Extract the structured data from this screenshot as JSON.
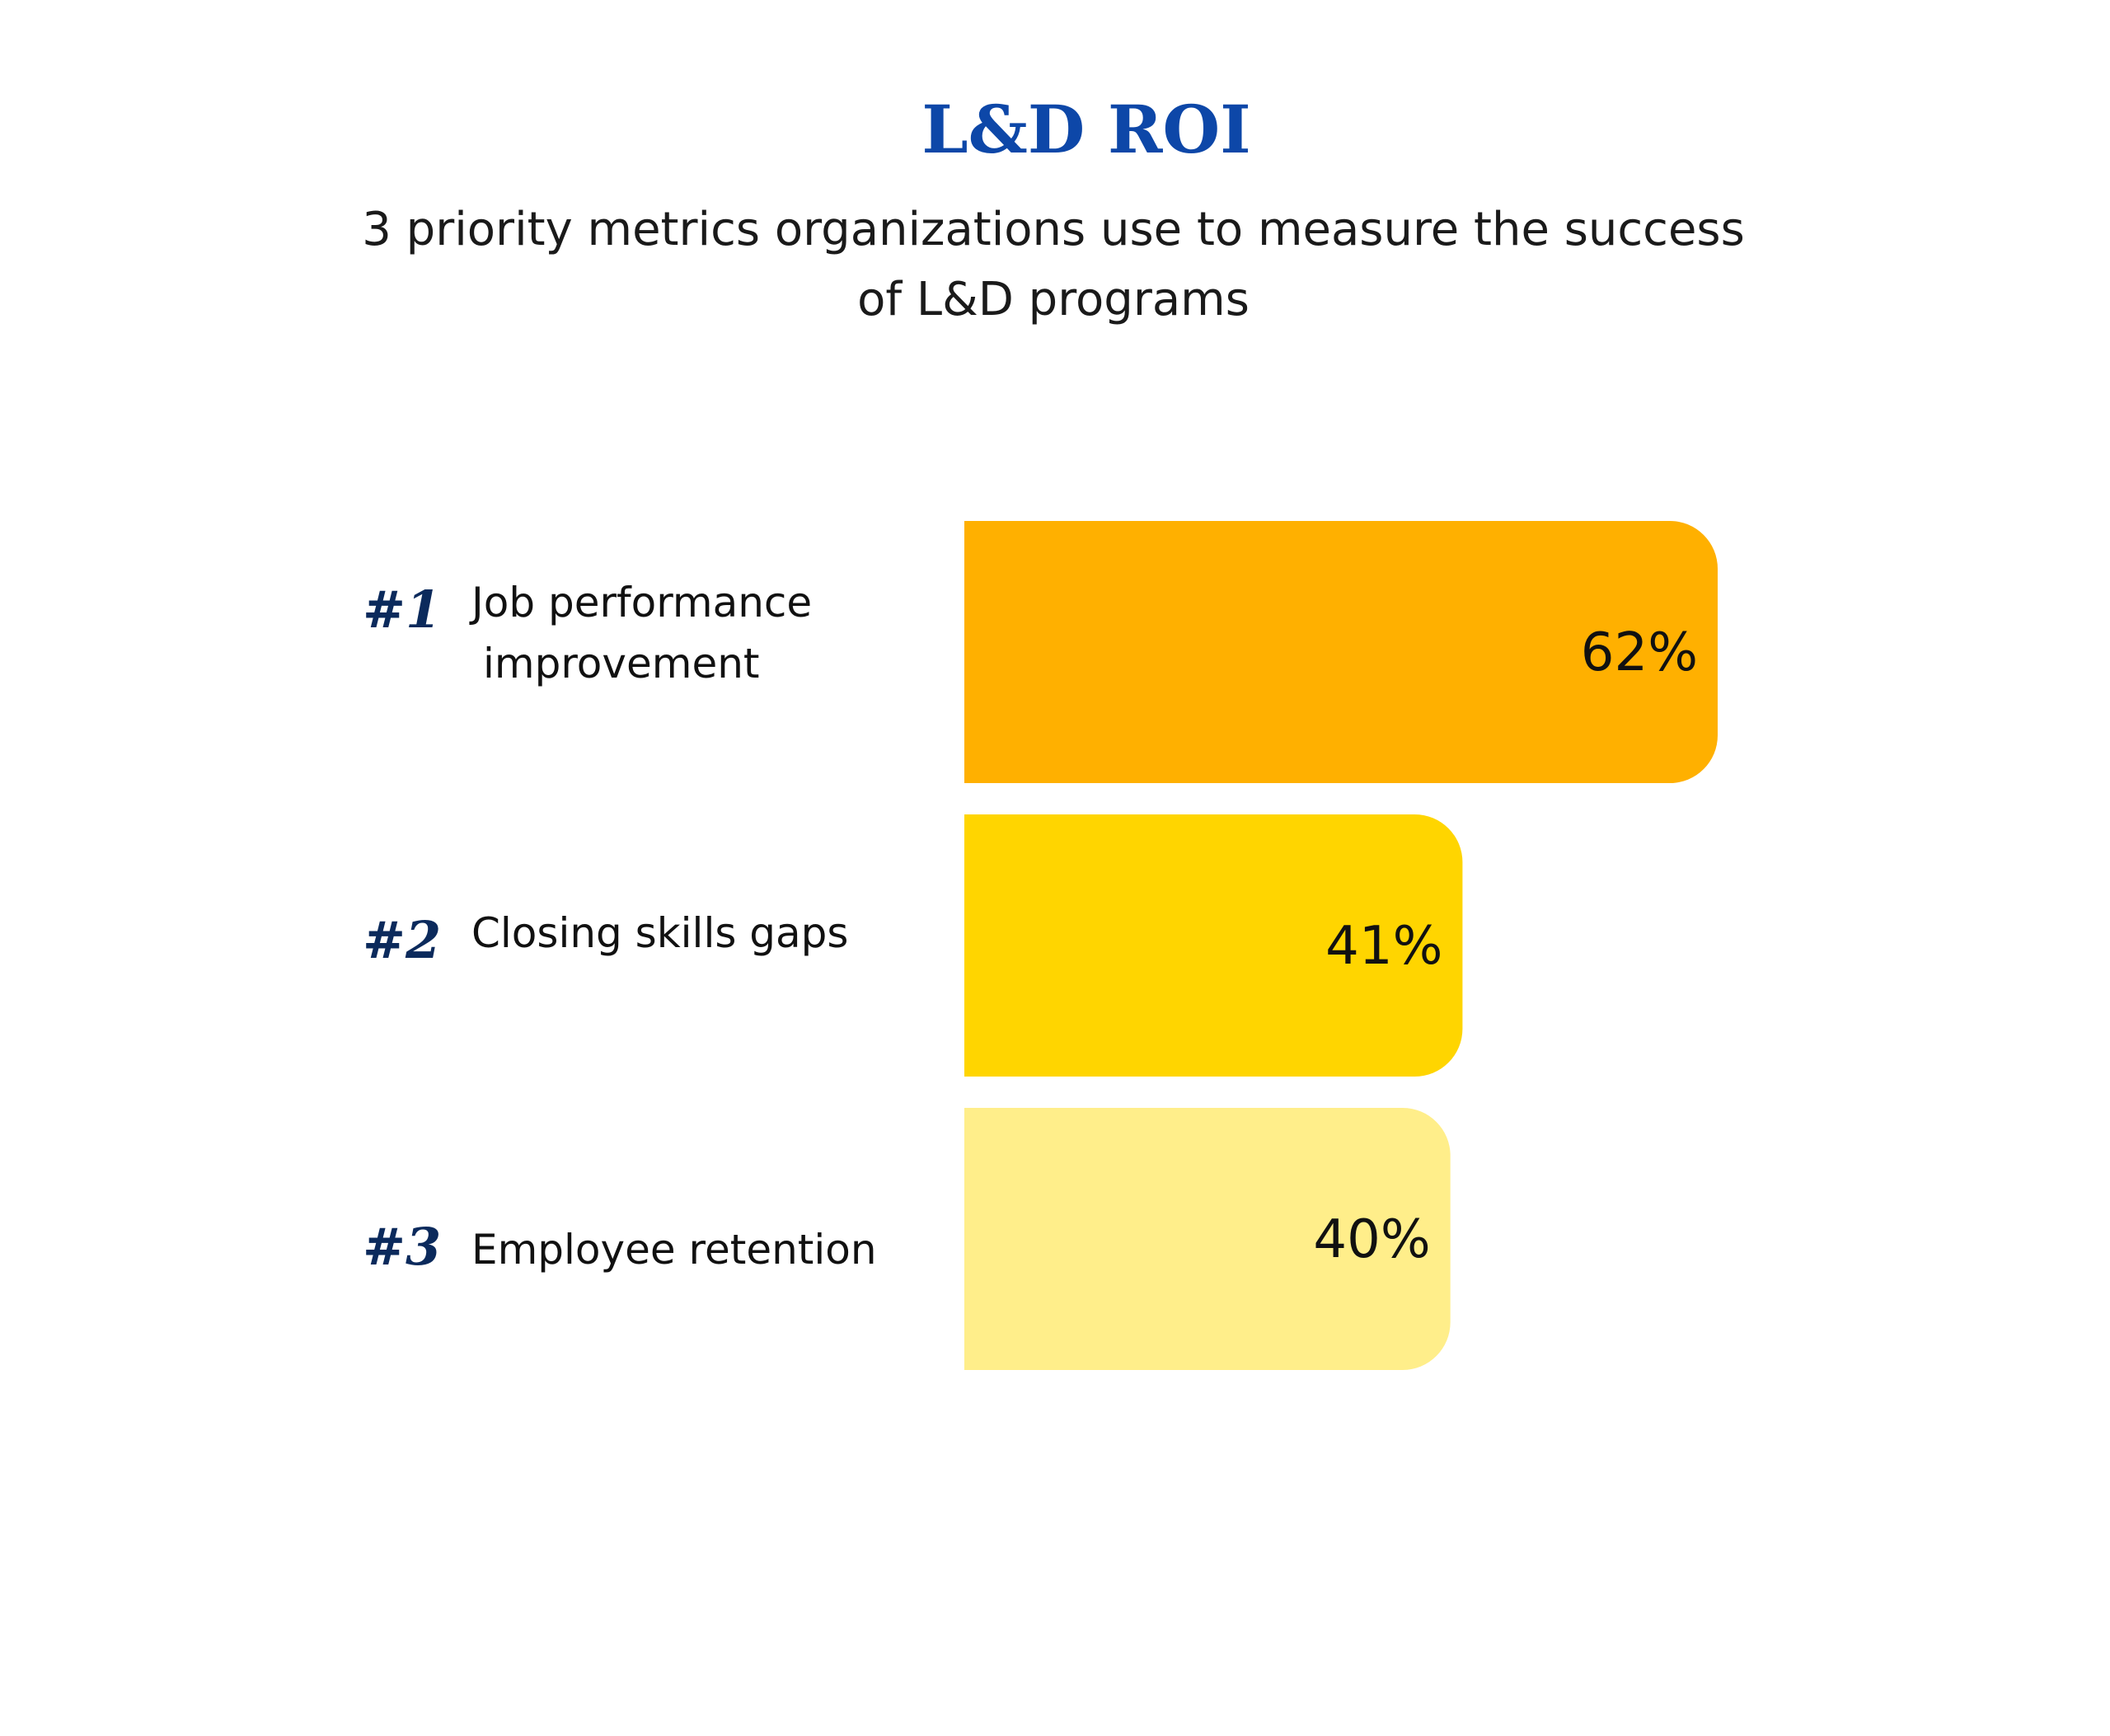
{
  "colors": {
    "title": "#0d47a8",
    "rank": "#0b2a5c",
    "text": "#111111"
  },
  "chart_data": {
    "type": "bar",
    "orientation": "horizontal",
    "title": "L&D ROI",
    "subtitle_lines": [
      "3 priority metrics organizations use to measure the success",
      "of L&D programs"
    ],
    "categories": [
      {
        "rank": "#1",
        "label_lines": [
          "Job performance",
          "improvement"
        ],
        "value": 62,
        "value_label": "62%",
        "color": "#ffb000"
      },
      {
        "rank": "#2",
        "label_lines": [
          "Closing skills gaps"
        ],
        "value": 41,
        "value_label": "41%",
        "color": "#ffd500"
      },
      {
        "rank": "#3",
        "label_lines": [
          "Employee retention"
        ],
        "value": 40,
        "value_label": "40%",
        "color": "#ffee8a"
      }
    ],
    "xlim": [
      0,
      62
    ],
    "grid": false,
    "legend": "none"
  }
}
